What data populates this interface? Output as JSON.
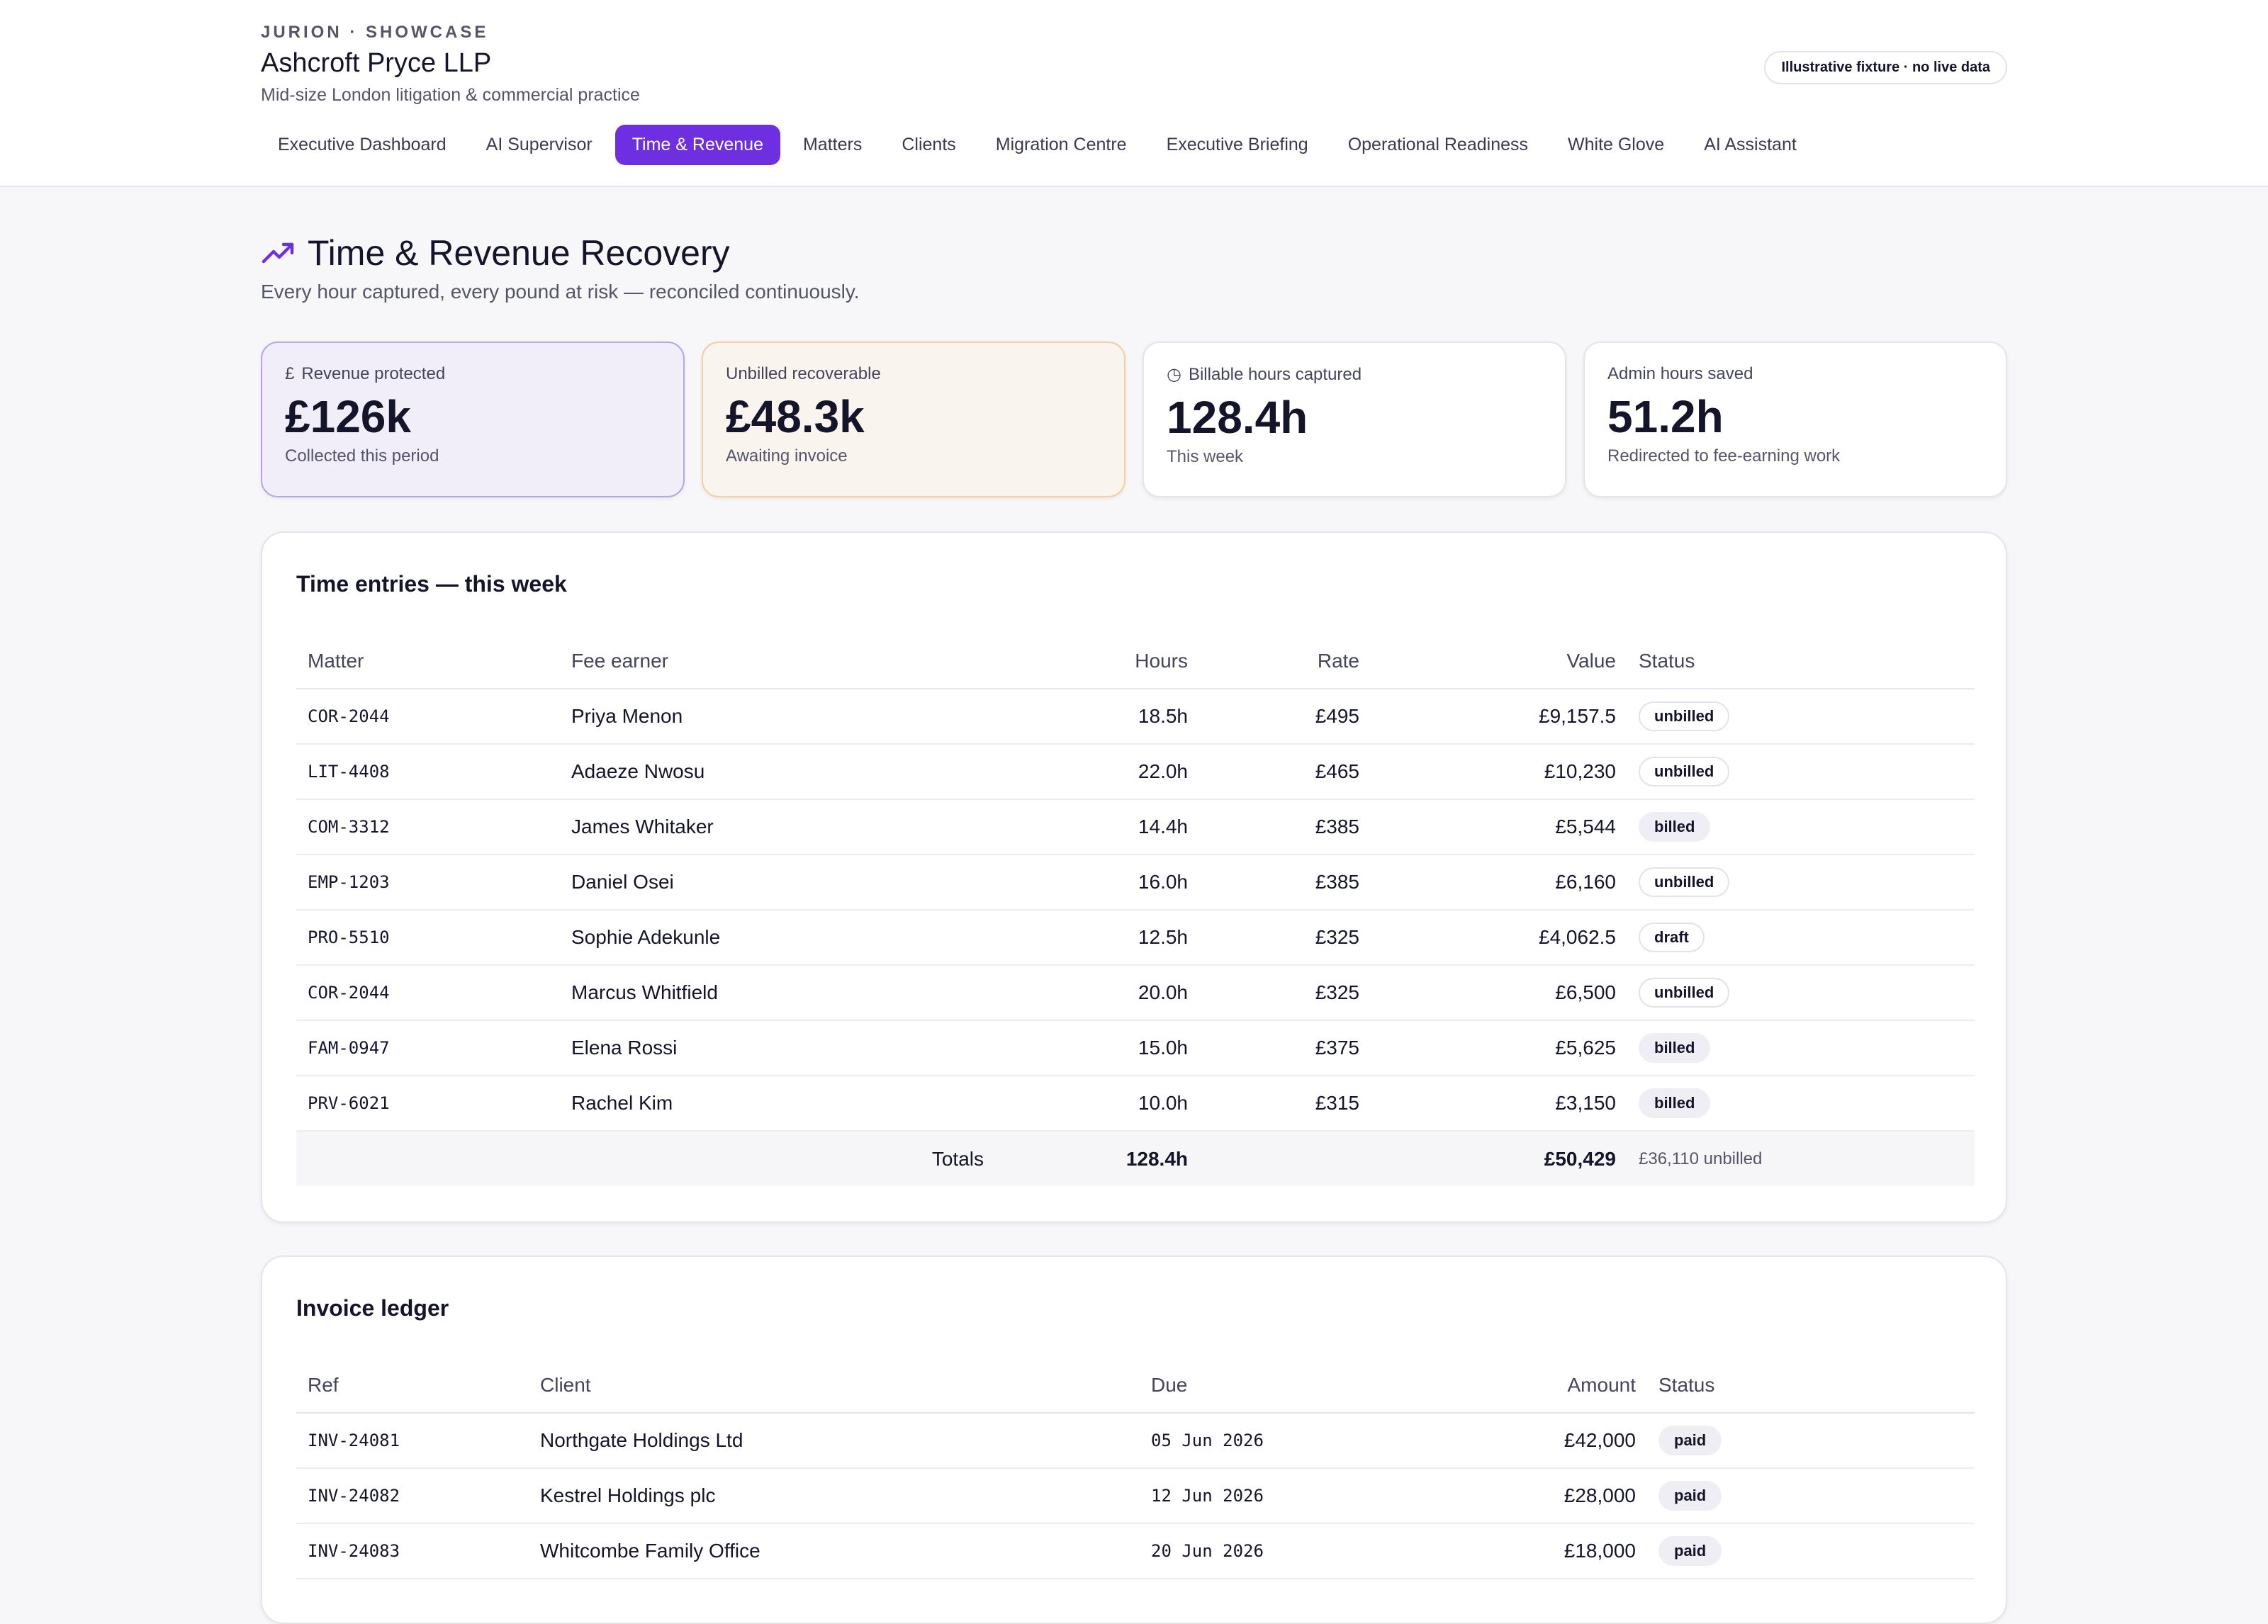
{
  "header": {
    "eyebrow": "JURION · SHOWCASE",
    "firm_name": "Ashcroft Pryce LLP",
    "firm_subtitle": "Mid-size London litigation & commercial practice",
    "fixture_badge": "Illustrative fixture · no live data"
  },
  "nav": {
    "tabs": [
      {
        "label": "Executive Dashboard",
        "active": false
      },
      {
        "label": "AI Supervisor",
        "active": false
      },
      {
        "label": "Time & Revenue",
        "active": true
      },
      {
        "label": "Matters",
        "active": false
      },
      {
        "label": "Clients",
        "active": false
      },
      {
        "label": "Migration Centre",
        "active": false
      },
      {
        "label": "Executive Briefing",
        "active": false
      },
      {
        "label": "Operational Readiness",
        "active": false
      },
      {
        "label": "White Glove",
        "active": false
      },
      {
        "label": "AI Assistant",
        "active": false
      }
    ]
  },
  "page": {
    "title": "Time & Revenue Recovery",
    "subtitle": "Every hour captured, every pound at risk — reconciled continuously.",
    "title_icon": "trending-up-icon"
  },
  "kpis": [
    {
      "icon": "£",
      "icon_name": "pound-icon",
      "label": "Revenue protected",
      "value": "£126k",
      "note": "Collected this period"
    },
    {
      "icon": "",
      "icon_name": "",
      "label": "Unbilled recoverable",
      "value": "£48.3k",
      "note": "Awaiting invoice"
    },
    {
      "icon": "◷",
      "icon_name": "clock-icon",
      "label": "Billable hours captured",
      "value": "128.4h",
      "note": "This week"
    },
    {
      "icon": "",
      "icon_name": "",
      "label": "Admin hours saved",
      "value": "51.2h",
      "note": "Redirected to fee-earning work"
    }
  ],
  "time_entries": {
    "title": "Time entries — this week",
    "columns": [
      "Matter",
      "Fee earner",
      "Hours",
      "Rate",
      "Value",
      "Status"
    ],
    "rows": [
      {
        "matter": "COR-2044",
        "fee_earner": "Priya Menon",
        "hours": "18.5h",
        "rate": "£495",
        "value": "£9,157.5",
        "status": "unbilled"
      },
      {
        "matter": "LIT-4408",
        "fee_earner": "Adaeze Nwosu",
        "hours": "22.0h",
        "rate": "£465",
        "value": "£10,230",
        "status": "unbilled"
      },
      {
        "matter": "COM-3312",
        "fee_earner": "James Whitaker",
        "hours": "14.4h",
        "rate": "£385",
        "value": "£5,544",
        "status": "billed"
      },
      {
        "matter": "EMP-1203",
        "fee_earner": "Daniel Osei",
        "hours": "16.0h",
        "rate": "£385",
        "value": "£6,160",
        "status": "unbilled"
      },
      {
        "matter": "PRO-5510",
        "fee_earner": "Sophie Adekunle",
        "hours": "12.5h",
        "rate": "£325",
        "value": "£4,062.5",
        "status": "draft"
      },
      {
        "matter": "COR-2044",
        "fee_earner": "Marcus Whitfield",
        "hours": "20.0h",
        "rate": "£325",
        "value": "£6,500",
        "status": "unbilled"
      },
      {
        "matter": "FAM-0947",
        "fee_earner": "Elena Rossi",
        "hours": "15.0h",
        "rate": "£375",
        "value": "£5,625",
        "status": "billed"
      },
      {
        "matter": "PRV-6021",
        "fee_earner": "Rachel Kim",
        "hours": "10.0h",
        "rate": "£315",
        "value": "£3,150",
        "status": "billed"
      }
    ],
    "totals": {
      "label": "Totals",
      "hours": "128.4h",
      "value": "£50,429",
      "unbilled": "£36,110 unbilled"
    }
  },
  "invoice_ledger": {
    "title": "Invoice ledger",
    "columns": [
      "Ref",
      "Client",
      "Due",
      "Amount",
      "Status"
    ],
    "rows": [
      {
        "ref": "INV-24081",
        "client": "Northgate Holdings Ltd",
        "due": "05 Jun 2026",
        "amount": "£42,000",
        "status": "paid"
      },
      {
        "ref": "INV-24082",
        "client": "Kestrel Holdings plc",
        "due": "12 Jun 2026",
        "amount": "£28,000",
        "status": "paid"
      },
      {
        "ref": "INV-24083",
        "client": "Whitcombe Family Office",
        "due": "20 Jun 2026",
        "amount": "£18,000",
        "status": "paid"
      }
    ]
  },
  "colors": {
    "accent": "#6d2fe0",
    "kpi_purple_bg": "#f1eef9",
    "kpi_amber_bg": "#faf4ee"
  }
}
